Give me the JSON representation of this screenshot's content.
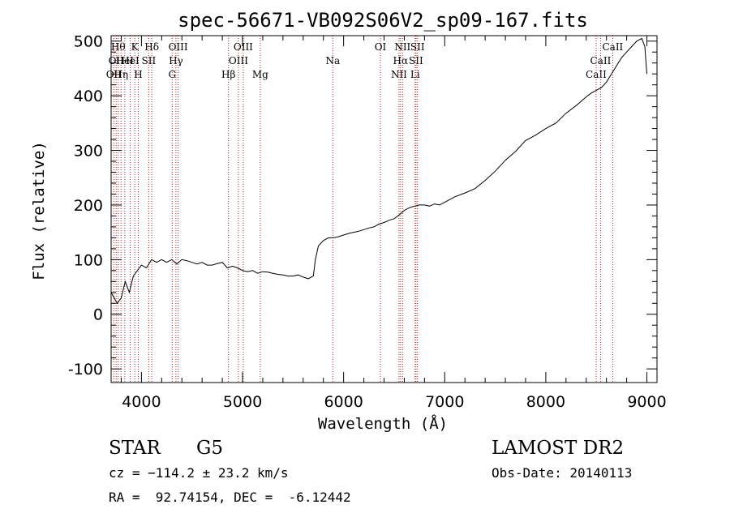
{
  "chart_data": {
    "type": "line",
    "title": "spec-56671-VB092S06V2_sp09-167.fits",
    "xlabel": "Wavelength (Å)",
    "ylabel": "Flux (relative)",
    "xlim": [
      3700,
      9100
    ],
    "ylim": [
      -125,
      510
    ],
    "xticks": [
      4000,
      5000,
      6000,
      7000,
      8000,
      9000
    ],
    "yticks": [
      -100,
      0,
      100,
      200,
      300,
      400,
      500
    ],
    "grid": false,
    "line_color": "#000000",
    "marker_color": "#b22222",
    "series": [
      {
        "x": [
          3700,
          3760,
          3800,
          3840,
          3880,
          3920,
          3960,
          4000,
          4050,
          4100,
          4150,
          4200,
          4250,
          4300,
          4350,
          4400,
          4450,
          4500,
          4550,
          4600,
          4650,
          4700,
          4750,
          4800,
          4850,
          4900,
          4950,
          5000,
          5050,
          5100,
          5150,
          5200,
          5250,
          5300,
          5350,
          5400,
          5450,
          5500,
          5550,
          5600,
          5650,
          5700,
          5720,
          5750,
          5800,
          5850,
          5900,
          5950,
          6000,
          6050,
          6100,
          6150,
          6200,
          6250,
          6300,
          6350,
          6400,
          6450,
          6500,
          6550,
          6600,
          6650,
          6700,
          6750,
          6800,
          6850,
          6900,
          6950,
          7000,
          7100,
          7200,
          7300,
          7400,
          7500,
          7600,
          7700,
          7800,
          7900,
          8000,
          8100,
          8200,
          8300,
          8400,
          8450,
          8500,
          8550,
          8600,
          8650,
          8700,
          8750,
          8800,
          8850,
          8900,
          8950,
          8980,
          9000
        ],
        "y": [
          40,
          20,
          30,
          60,
          40,
          70,
          80,
          90,
          85,
          100,
          95,
          100,
          95,
          100,
          92,
          100,
          98,
          95,
          92,
          95,
          90,
          90,
          93,
          95,
          85,
          88,
          85,
          80,
          78,
          80,
          75,
          78,
          77,
          75,
          73,
          72,
          70,
          70,
          72,
          68,
          65,
          70,
          100,
          125,
          135,
          140,
          140,
          142,
          145,
          148,
          150,
          152,
          155,
          158,
          160,
          165,
          168,
          172,
          175,
          182,
          190,
          195,
          198,
          200,
          200,
          198,
          202,
          200,
          205,
          215,
          222,
          230,
          245,
          262,
          282,
          298,
          318,
          328,
          340,
          350,
          368,
          382,
          398,
          405,
          410,
          415,
          425,
          440,
          455,
          470,
          480,
          490,
          500,
          505,
          490,
          440
        ]
      }
    ],
    "lines": [
      {
        "x": 3727,
        "label": "OII",
        "row": 2
      },
      {
        "x": 3750,
        "label": "OII",
        "row": 1
      },
      {
        "x": 3770,
        "label": "Hθ",
        "row": 0
      },
      {
        "x": 3798,
        "label": "Hη",
        "row": 2
      },
      {
        "x": 3835,
        "label": "HeI",
        "row": 1
      },
      {
        "x": 3889,
        "label": "HeI",
        "row": 1
      },
      {
        "x": 3934,
        "label": "K",
        "row": 0
      },
      {
        "x": 3969,
        "label": "H",
        "row": 2
      },
      {
        "x": 4072,
        "label": "SII",
        "row": 1
      },
      {
        "x": 4102,
        "label": "Hδ",
        "row": 0
      },
      {
        "x": 4304,
        "label": "G",
        "row": 2
      },
      {
        "x": 4341,
        "label": "Hγ",
        "row": 1
      },
      {
        "x": 4363,
        "label": "OIII",
        "row": 0
      },
      {
        "x": 4861,
        "label": "Hβ",
        "row": 2
      },
      {
        "x": 4959,
        "label": "OIII",
        "row": 1
      },
      {
        "x": 5007,
        "label": "OIII",
        "row": 0
      },
      {
        "x": 5175,
        "label": "Mg",
        "row": 2
      },
      {
        "x": 5893,
        "label": "Na",
        "row": 1
      },
      {
        "x": 6364,
        "label": "OI",
        "row": 0
      },
      {
        "x": 6548,
        "label": "NII",
        "row": 2
      },
      {
        "x": 6563,
        "label": "Hα",
        "row": 1
      },
      {
        "x": 6583,
        "label": "NII",
        "row": 0
      },
      {
        "x": 6707,
        "label": "Li",
        "row": 2
      },
      {
        "x": 6716,
        "label": "SII",
        "row": 1
      },
      {
        "x": 6731,
        "label": "SII",
        "row": 0
      },
      {
        "x": 8498,
        "label": "CaII",
        "row": 2
      },
      {
        "x": 8542,
        "label": "CaII",
        "row": 1
      },
      {
        "x": 8662,
        "label": "CaII",
        "row": 0
      }
    ]
  },
  "info": {
    "object_class": "STAR",
    "subclass": "G5",
    "survey": "LAMOST DR2",
    "cz": "cz = −114.2 ± 23.2 km/s",
    "obs_date": "Obs-Date: 20140113",
    "coords": "RA =  92.74154, DEC =  -6.12442"
  }
}
